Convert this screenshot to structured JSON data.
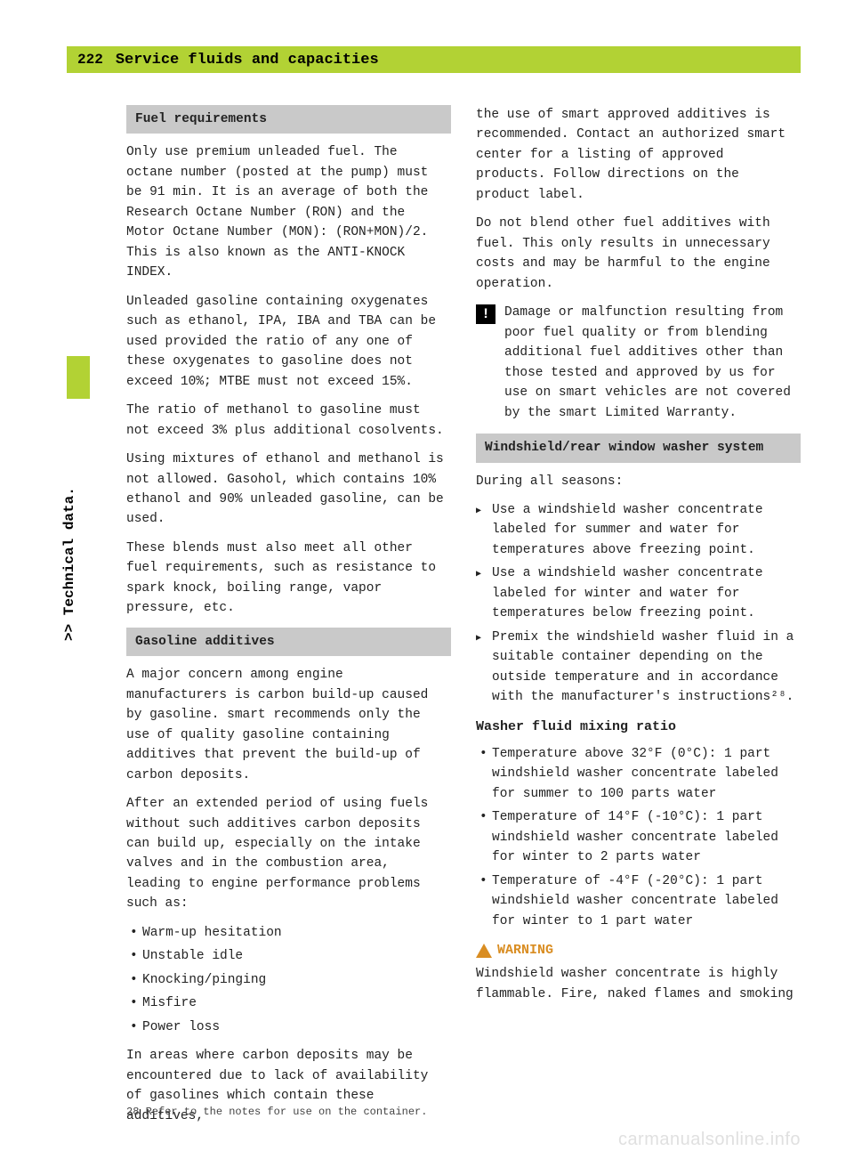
{
  "page": {
    "number": "222",
    "title": "Service fluids and capacities",
    "side_label": ">> Technical data."
  },
  "left": {
    "fuel_head": "Fuel requirements",
    "fuel_p1": "Only use premium unleaded fuel. The octane number (posted at the pump) must be 91 min. It is an average of both the Research Octane Number (RON) and the Motor Octane Number (MON): (RON+MON)/2. This is also known as the ANTI-KNOCK INDEX.",
    "fuel_p2": "Unleaded gasoline containing oxygenates such as ethanol, IPA, IBA and TBA can be used provided the ratio of any one of these oxygenates to gasoline does not exceed 10%; MTBE must not exceed 15%.",
    "fuel_p3": "The ratio of methanol to gasoline must not exceed 3% plus additional cosolvents.",
    "fuel_p4": "Using mixtures of ethanol and methanol is not allowed. Gasohol, which contains 10% ethanol and 90% unleaded gasoline, can be used.",
    "fuel_p5": "These blends must also meet all other fuel requirements, such as resistance to spark knock, boiling range, vapor pressure, etc.",
    "gas_head": "Gasoline additives",
    "gas_p1": "A major concern among engine manufacturers is carbon build-up caused by gasoline. smart recommends only the use of quality gasoline containing additives that prevent the build-up of carbon deposits.",
    "gas_p2": "After an extended period of using fuels without such additives carbon deposits can build up, especially on the intake valves and in the combustion area, leading to engine performance problems such as:",
    "gas_b1": "Warm-up hesitation",
    "gas_b2": "Unstable idle",
    "gas_b3": "Knocking/pinging",
    "gas_b4": "Misfire",
    "gas_b5": "Power loss",
    "gas_p3": "In areas where carbon deposits may be encountered due to lack of availability of gasolines which contain these additives,"
  },
  "right": {
    "p1": "the use of smart approved additives is recommended. Contact an authorized smart center for a listing of approved products. Follow directions on the product label.",
    "p2": "Do not blend other fuel additives with fuel. This only results in unnecessary costs and may be harmful to the engine operation.",
    "note": "Damage or malfunction resulting from poor fuel quality or from blending additional fuel additives other than those tested and approved by us for use on smart vehicles are not covered by the smart Limited Warranty.",
    "wash_head": "Windshield/rear window washer system",
    "wash_p1": "During all seasons:",
    "wash_b1": "Use a windshield washer concentrate labeled for summer and water for temperatures above freezing point.",
    "wash_b2": "Use a windshield washer concentrate labeled for winter and water for temperatures below freezing point.",
    "wash_b3": "Premix the windshield washer fluid in a suitable container depending on the outside temperature and in accordance with the manufacturer's instructions²⁸.",
    "mix_head": "Washer fluid mixing ratio",
    "mix_b1": "Temperature above 32°F (0°C): 1 part windshield washer concentrate labeled for summer to 100 parts water",
    "mix_b2": "Temperature of 14°F (-10°C): 1 part windshield washer concentrate labeled for winter to 2 parts water",
    "mix_b3": "Temperature of -4°F (-20°C): 1 part windshield washer concentrate labeled for winter to 1 part water",
    "warn_label": "WARNING",
    "warn_text": "Windshield washer concentrate is highly flammable. Fire, naked flames and smoking"
  },
  "footnote": "28 Refer to the notes for use on the container.",
  "watermark": "carmanualsonline.info",
  "colors": {
    "accent": "#b2d234",
    "gray_head": "#c9c9c9",
    "warning": "#d98d22"
  }
}
